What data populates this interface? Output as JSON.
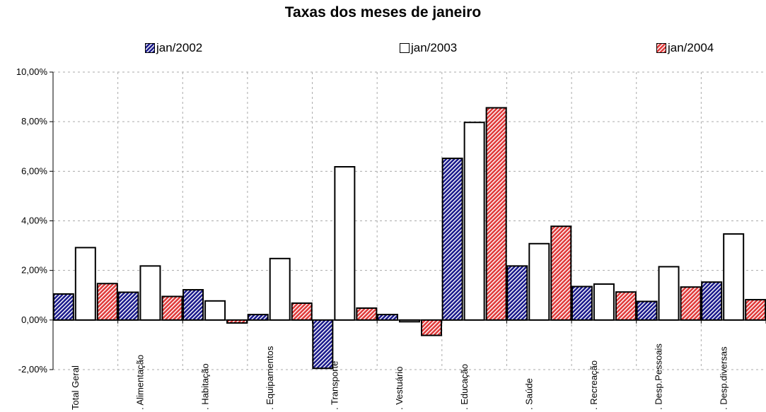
{
  "chart_data": {
    "type": "bar",
    "title": "Taxas dos meses de janeiro",
    "categories": [
      "Total Geral",
      ". Alimentação",
      ". Habitação",
      ". Equipamentos",
      ". Transporte",
      ". Vestuário",
      ". Educação",
      ". Saúde",
      ". Recreação",
      ". Desp.Pessoais",
      ". Desp.diversas"
    ],
    "series": [
      {
        "name": "jan/2002",
        "color": "#1a1a8c",
        "values": [
          1.05,
          1.12,
          1.22,
          0.22,
          -1.95,
          0.22,
          6.52,
          2.18,
          1.35,
          0.75,
          1.53
        ]
      },
      {
        "name": "jan/2003",
        "color": "#ffffff",
        "values": [
          2.92,
          2.18,
          0.77,
          2.48,
          6.18,
          -0.07,
          7.97,
          3.08,
          1.45,
          2.15,
          3.47
        ]
      },
      {
        "name": "jan/2004",
        "color": "#e03a3a",
        "values": [
          1.47,
          0.95,
          -0.12,
          0.68,
          0.48,
          -0.62,
          8.56,
          3.78,
          1.13,
          1.33,
          0.82
        ]
      }
    ],
    "ylim": [
      -2,
      10
    ],
    "yticks": [
      "-2,00%",
      "0,00%",
      "2,00%",
      "4,00%",
      "6,00%",
      "8,00%",
      "10,00%"
    ],
    "grid": true,
    "legend_position": "top"
  }
}
